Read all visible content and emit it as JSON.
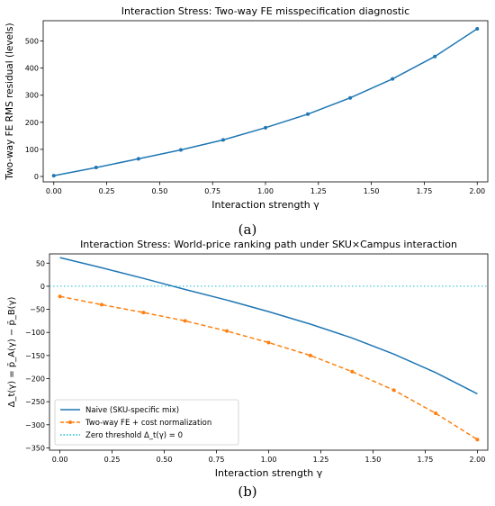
{
  "panels": [
    {
      "label": "(a)"
    },
    {
      "label": "(b)"
    }
  ],
  "chart_data": [
    {
      "type": "line",
      "title": "Interaction Stress: Two-way FE misspecification diagnostic",
      "xlabel": "Interaction strength γ",
      "ylabel": "Two-way FE RMS residual (levels)",
      "xlim": [
        -0.05,
        2.05
      ],
      "ylim": [
        -20,
        575
      ],
      "xticks": [
        0.0,
        0.25,
        0.5,
        0.75,
        1.0,
        1.25,
        1.5,
        1.75,
        2.0
      ],
      "xtick_labels": [
        "0.00",
        "0.25",
        "0.50",
        "0.75",
        "1.00",
        "1.25",
        "1.50",
        "1.75",
        "2.00"
      ],
      "yticks": [
        0,
        100,
        200,
        300,
        400,
        500
      ],
      "ytick_labels": [
        "0",
        "100",
        "200",
        "300",
        "400",
        "500"
      ],
      "grid": false,
      "series": [
        {
          "color": "#1f77b4",
          "marker": "dot",
          "line_style": "solid",
          "x": [
            0.0,
            0.2,
            0.4,
            0.6,
            0.8,
            1.0,
            1.2,
            1.4,
            1.6,
            1.8,
            2.0
          ],
          "y": [
            3,
            33,
            65,
            98,
            135,
            180,
            230,
            290,
            360,
            443,
            545
          ]
        }
      ]
    },
    {
      "type": "line",
      "title": "Interaction Stress: World-price ranking path under SKU×Campus interaction",
      "xlabel": "Interaction strength γ",
      "ylabel": "Δ_t(γ) = p̄_A(γ) − p̄_B(γ)",
      "xlim": [
        -0.05,
        2.05
      ],
      "ylim": [
        -355,
        70
      ],
      "xticks": [
        0.0,
        0.25,
        0.5,
        0.75,
        1.0,
        1.25,
        1.5,
        1.75,
        2.0
      ],
      "xtick_labels": [
        "0.00",
        "0.25",
        "0.50",
        "0.75",
        "1.00",
        "1.25",
        "1.50",
        "1.75",
        "2.00"
      ],
      "yticks": [
        50,
        0,
        -50,
        -100,
        -150,
        -200,
        -250,
        -300,
        -350
      ],
      "ytick_labels": [
        "50",
        "0",
        "−50",
        "−100",
        "−150",
        "−200",
        "−250",
        "−300",
        "−350"
      ],
      "grid": false,
      "legend_position": "lower-left",
      "series": [
        {
          "name": "Naive (SKU-specific mix)",
          "color": "#1f77b4",
          "marker": "none",
          "line_style": "solid",
          "x": [
            0.0,
            0.2,
            0.4,
            0.6,
            0.8,
            1.0,
            1.2,
            1.4,
            1.6,
            1.8,
            2.0
          ],
          "y": [
            62,
            40,
            17,
            -7,
            -30,
            -55,
            -82,
            -112,
            -147,
            -187,
            -233
          ]
        },
        {
          "name": "Two-way FE + cost normalization",
          "color": "#ff7f0e",
          "marker": "dot",
          "line_style": "dashed",
          "x": [
            0.0,
            0.2,
            0.4,
            0.6,
            0.8,
            1.0,
            1.2,
            1.4,
            1.6,
            1.8,
            2.0
          ],
          "y": [
            -22,
            -40,
            -57,
            -75,
            -97,
            -122,
            -150,
            -185,
            -225,
            -275,
            -332
          ]
        },
        {
          "name": "Zero threshold Δ_t(γ) = 0",
          "color": "#17becf",
          "marker": "none",
          "line_style": "dotted",
          "x": [
            -0.05,
            2.05
          ],
          "y": [
            0,
            0
          ]
        }
      ]
    }
  ]
}
